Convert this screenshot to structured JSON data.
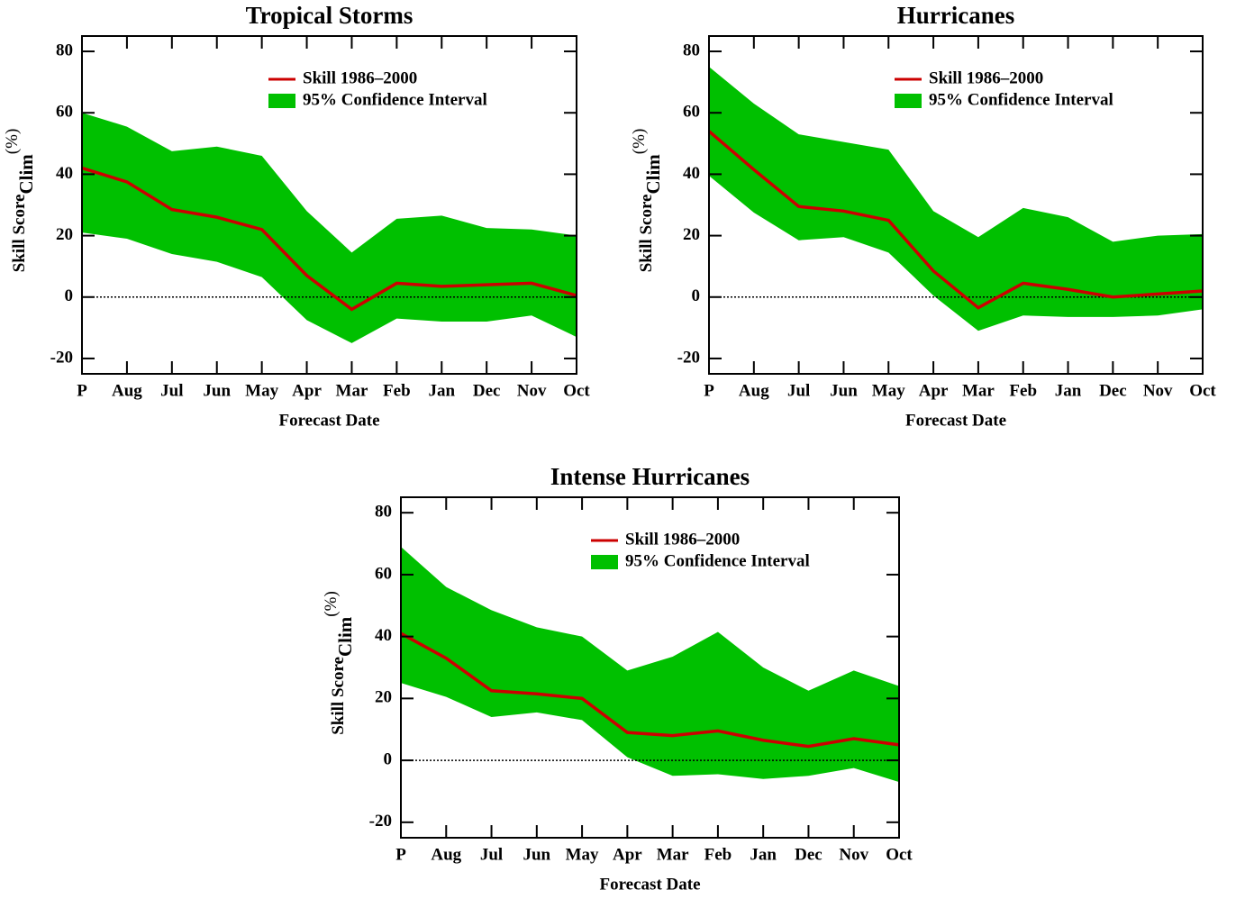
{
  "chart_data": [
    {
      "type": "line",
      "title": "Tropical Storms",
      "xlabel": "Forecast Date",
      "ylabel": "Skill Score",
      "ylabel_sub": "Clim",
      "ylabel_sup": "(%)",
      "categories": [
        "P",
        "Aug",
        "Jul",
        "Jun",
        "May",
        "Apr",
        "Mar",
        "Feb",
        "Jan",
        "Dec",
        "Nov",
        "Oct"
      ],
      "series": [
        {
          "name": "Skill 1986–2000",
          "color": "#cc0000",
          "values": [
            42,
            37.5,
            28.5,
            26,
            22,
            7,
            -4,
            4.5,
            3.5,
            4,
            4.5,
            0.5
          ]
        },
        {
          "name": "95% Confidence Interval",
          "color": "#00c000",
          "upper": [
            60,
            55.5,
            47.5,
            49,
            46,
            28,
            14.5,
            25.5,
            26.5,
            22.5,
            22,
            20
          ],
          "lower": [
            21,
            19,
            14,
            11.5,
            6.5,
            -7.5,
            -15,
            -7,
            -8,
            -8,
            -6,
            -13
          ]
        }
      ],
      "ylim": [
        -25,
        85
      ],
      "yticks": [
        -20,
        0,
        20,
        40,
        60,
        80
      ],
      "reference_line": 0,
      "legend": "upper right"
    },
    {
      "type": "line",
      "title": "Hurricanes",
      "xlabel": "Forecast Date",
      "ylabel": "Skill Score",
      "ylabel_sub": "Clim",
      "ylabel_sup": "(%)",
      "categories": [
        "P",
        "Aug",
        "Jul",
        "Jun",
        "May",
        "Apr",
        "Mar",
        "Feb",
        "Jan",
        "Dec",
        "Nov",
        "Oct"
      ],
      "series": [
        {
          "name": "Skill 1986–2000",
          "color": "#cc0000",
          "values": [
            54,
            41.5,
            29.5,
            28,
            25,
            8.5,
            -3.5,
            4.5,
            2.5,
            0,
            1,
            2
          ]
        },
        {
          "name": "95% Confidence Interval",
          "color": "#00c000",
          "upper": [
            75,
            63,
            53,
            50.5,
            48,
            28,
            19.5,
            29,
            26,
            18,
            20,
            20.5
          ],
          "lower": [
            39.5,
            27.5,
            18.5,
            19.5,
            14.5,
            0.5,
            -11,
            -6,
            -6.5,
            -6.5,
            -6,
            -4
          ]
        }
      ],
      "ylim": [
        -25,
        85
      ],
      "yticks": [
        -20,
        0,
        20,
        40,
        60,
        80
      ],
      "reference_line": 0,
      "legend": "upper right"
    },
    {
      "type": "line",
      "title": "Intense Hurricanes",
      "xlabel": "Forecast Date",
      "ylabel": "Skill Score",
      "ylabel_sub": "Clim",
      "ylabel_sup": "(%)",
      "categories": [
        "P",
        "Aug",
        "Jul",
        "Jun",
        "May",
        "Apr",
        "Mar",
        "Feb",
        "Jan",
        "Dec",
        "Nov",
        "Oct"
      ],
      "series": [
        {
          "name": "Skill 1986–2000",
          "color": "#cc0000",
          "values": [
            41,
            33,
            22.5,
            21.5,
            20,
            9,
            8,
            9.5,
            6.5,
            4.5,
            7,
            5
          ]
        },
        {
          "name": "95% Confidence Interval",
          "color": "#00c000",
          "upper": [
            69,
            56,
            48.5,
            43,
            40,
            29,
            33.5,
            41.5,
            30,
            22.5,
            29,
            24
          ],
          "lower": [
            25,
            20.5,
            14,
            15.5,
            13,
            1,
            -5,
            -4.5,
            -6,
            -5,
            -2.5,
            -7
          ]
        }
      ],
      "ylim": [
        -25,
        85
      ],
      "yticks": [
        -20,
        0,
        20,
        40,
        60,
        80
      ],
      "reference_line": 0,
      "legend": "upper right"
    }
  ]
}
